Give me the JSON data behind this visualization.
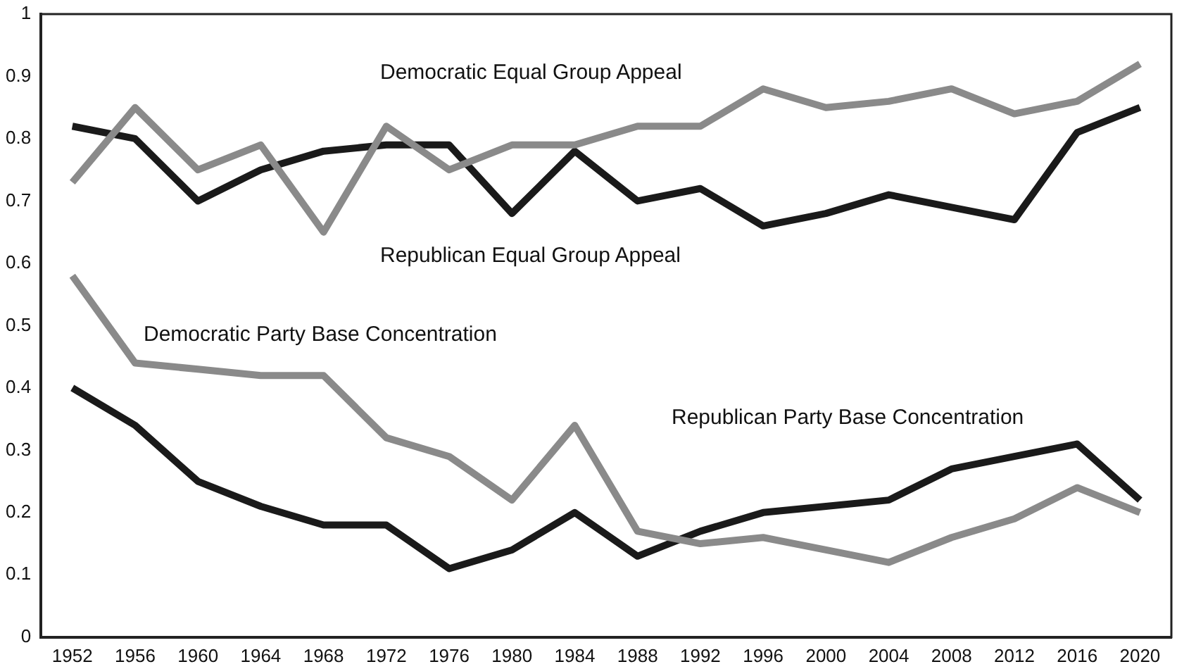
{
  "chart_data": {
    "type": "line",
    "categories": [
      "1952",
      "1956",
      "1960",
      "1964",
      "1968",
      "1972",
      "1976",
      "1980",
      "1984",
      "1988",
      "1992",
      "1996",
      "2000",
      "2004",
      "2008",
      "2012",
      "2016",
      "2020"
    ],
    "series": [
      {
        "name": "Democratic Equal Group Appeal",
        "color": "#8a8a8a",
        "values": [
          0.73,
          0.85,
          0.75,
          0.79,
          0.65,
          0.82,
          0.75,
          0.79,
          0.79,
          0.82,
          0.82,
          0.88,
          0.85,
          0.86,
          0.88,
          0.84,
          0.86,
          0.92
        ]
      },
      {
        "name": "Republican Equal Group Appeal",
        "color": "#1a1a1a",
        "values": [
          0.82,
          0.8,
          0.7,
          0.75,
          0.78,
          0.79,
          0.79,
          0.68,
          0.78,
          0.7,
          0.72,
          0.66,
          0.68,
          0.71,
          0.69,
          0.67,
          0.81,
          0.85
        ]
      },
      {
        "name": "Democratic Party Base Concentration",
        "color": "#8a8a8a",
        "values": [
          0.58,
          0.44,
          0.43,
          0.42,
          0.42,
          0.32,
          0.29,
          0.22,
          0.34,
          0.17,
          0.15,
          0.16,
          0.14,
          0.12,
          0.16,
          0.19,
          0.24,
          0.2
        ]
      },
      {
        "name": "Republican Party Base Concentration",
        "color": "#1a1a1a",
        "values": [
          0.4,
          0.34,
          0.25,
          0.21,
          0.18,
          0.18,
          0.11,
          0.14,
          0.2,
          0.13,
          0.17,
          0.2,
          0.21,
          0.22,
          0.27,
          0.29,
          0.31,
          0.22
        ]
      }
    ],
    "ylim": [
      0,
      1
    ],
    "yticks": [
      0,
      0.1,
      0.2,
      0.3,
      0.4,
      0.5,
      0.6,
      0.7,
      0.8,
      0.9,
      1
    ],
    "grid": false,
    "legend": false,
    "marker": "none",
    "line_style": "solid"
  }
}
